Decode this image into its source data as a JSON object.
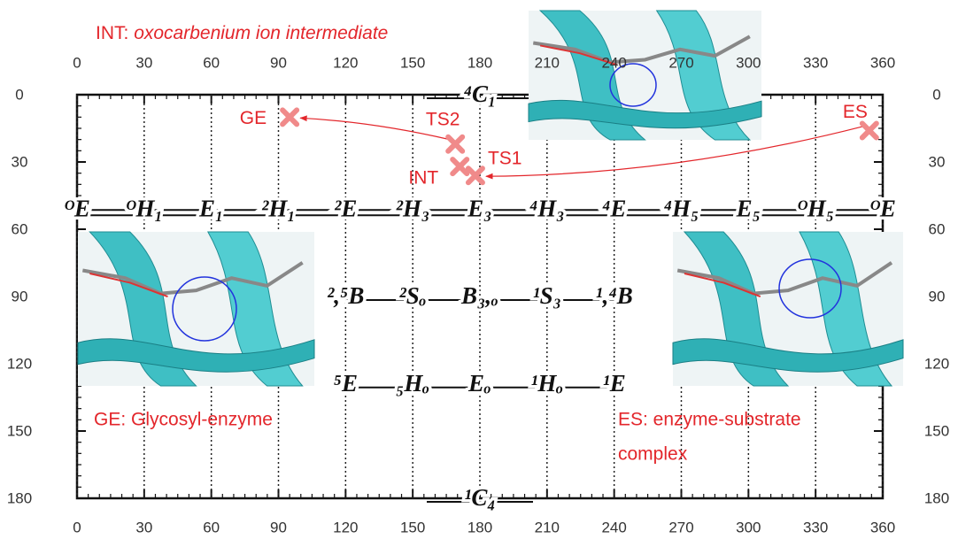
{
  "chart_data": {
    "type": "scatter",
    "annotations": {
      "int_label": "INT:",
      "int_desc": "oxocarbenium ion intermediate",
      "ge_note": "GE: Glycosyl-enzyme",
      "es_note": [
        "ES: enzyme-substrate",
        "complex"
      ]
    },
    "point_labels": [
      "GE",
      "TS2",
      "INT",
      "TS1",
      "ES"
    ],
    "x": [
      95,
      169,
      171,
      178,
      354
    ],
    "y": [
      10,
      22,
      32,
      36,
      16
    ],
    "color": "#f08a8a",
    "xlim": [
      0,
      360
    ],
    "xticks": [
      0,
      30,
      60,
      90,
      120,
      150,
      180,
      210,
      240,
      270,
      300,
      330,
      360
    ],
    "ylim": [
      0,
      180
    ],
    "yticks": [
      0,
      30,
      60,
      90,
      120,
      150,
      180
    ],
    "y_reversed": true,
    "grid": true,
    "conformer_rows": [
      {
        "theta": 0,
        "phi": [
          180
        ],
        "labels": [
          "⁴C₁"
        ]
      },
      {
        "theta": 51,
        "phi": [
          0,
          30,
          60,
          90,
          120,
          150,
          180,
          210,
          240,
          270,
          300,
          330,
          360
        ],
        "labels": [
          "ᴼE",
          "ᴼH₁",
          "E₁",
          "²H₁",
          "²E",
          "²H₃",
          "E₃",
          "⁴H₃",
          "⁴E",
          "⁴H₅",
          "E₅",
          "ᴼH₅",
          "ᴼE"
        ]
      },
      {
        "theta": 90,
        "phi": [
          120,
          150,
          180,
          210,
          240
        ],
        "labels": [
          "²,⁵B",
          "²Sₒ",
          "B₃,ₒ",
          "¹S₃",
          "¹,⁴B"
        ]
      },
      {
        "theta": 129,
        "phi": [
          120,
          150,
          180,
          210,
          240
        ],
        "labels": [
          "⁵E",
          "₅Hₒ",
          "Eₒ",
          "¹Hₒ",
          "¹E"
        ]
      },
      {
        "theta": 180,
        "phi": [
          180
        ],
        "labels": [
          "¹C₄"
        ]
      }
    ]
  }
}
